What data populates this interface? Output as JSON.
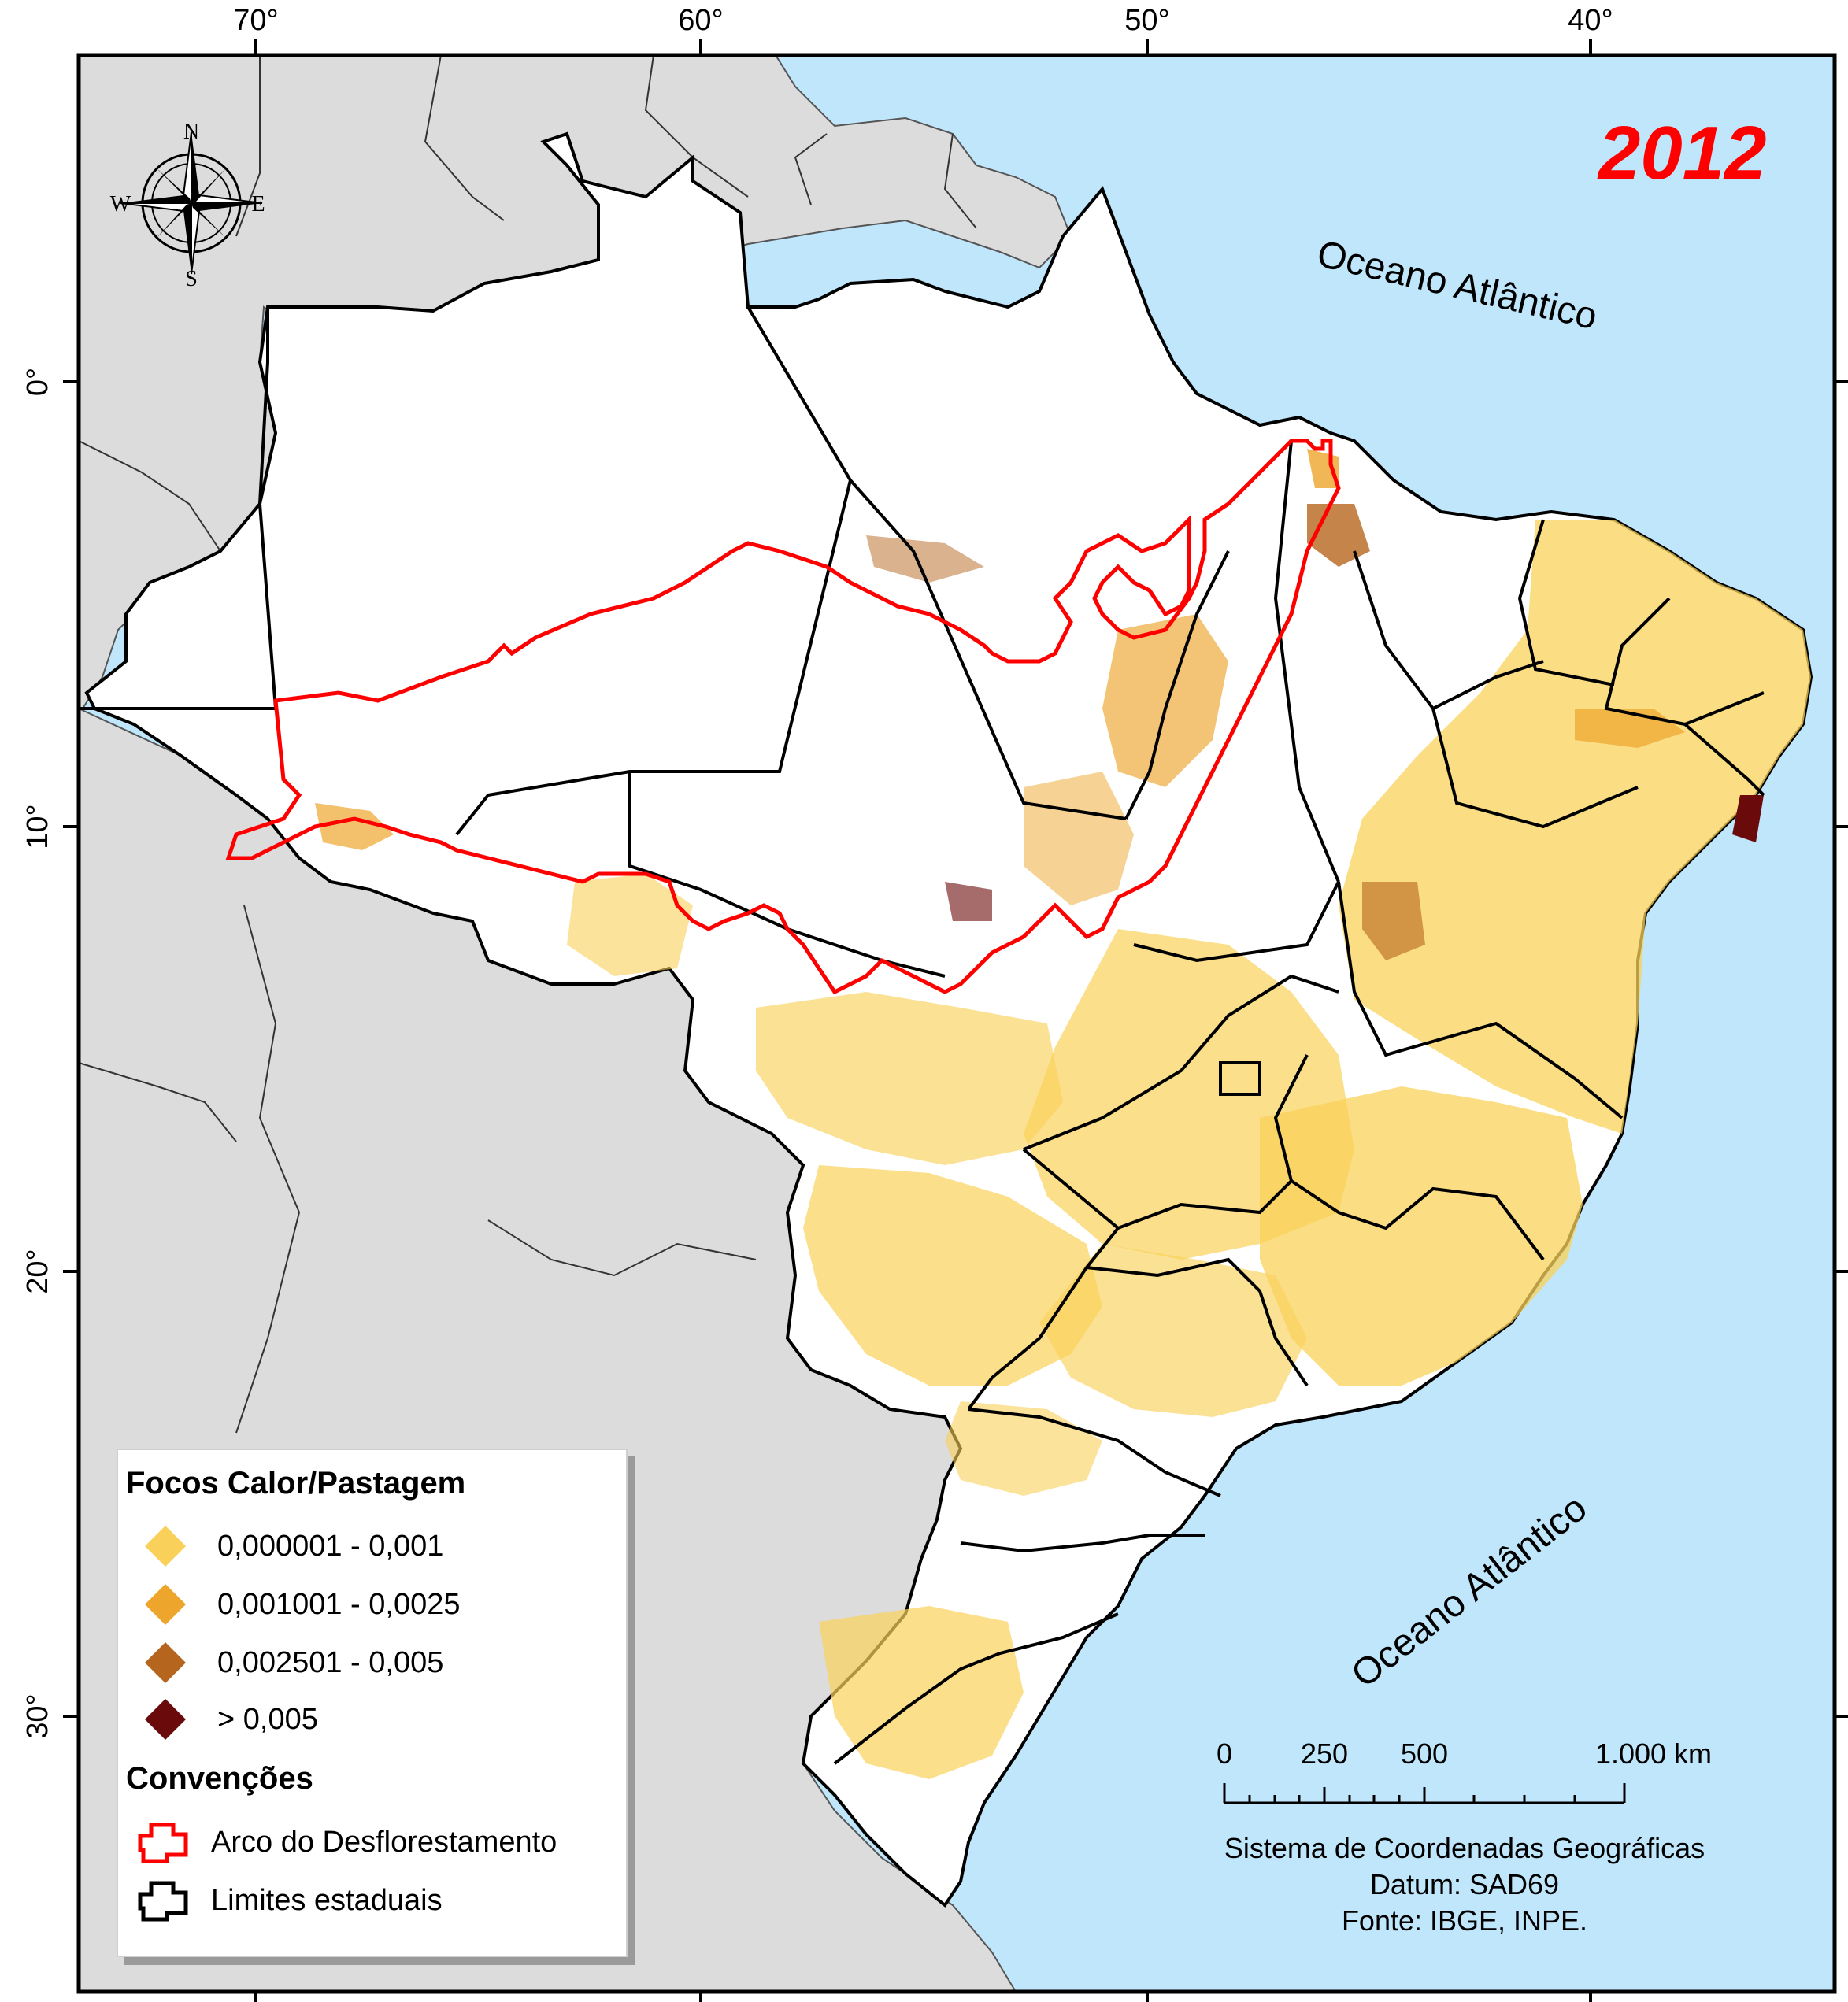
{
  "map": {
    "year": "2012",
    "ocean_labels": [
      "Oceano Atlântico",
      "Oceano Atlântico"
    ],
    "lon_ticks": [
      "70°",
      "60°",
      "50°",
      "40°"
    ],
    "lat_ticks": [
      "0°",
      "10°",
      "20°",
      "30°"
    ],
    "compass": {
      "north": "N",
      "south": "S",
      "east": "E",
      "west": "W"
    },
    "colors": {
      "ocean": "#bfe6fb",
      "neighbors": "#dcdcdc",
      "brazil": "#ffffff",
      "arco": "#ff0000",
      "state_limits": "#000000"
    }
  },
  "legend": {
    "title": "Focos Calor/Pastagem",
    "classes": [
      {
        "label": "0,000001 - 0,001",
        "color": "#f9d15a"
      },
      {
        "label": "0,001001 - 0,0025",
        "color": "#eea52c"
      },
      {
        "label": "0,002501 - 0,005",
        "color": "#b5651d"
      },
      {
        "label": "> 0,005",
        "color": "#6b0a0a"
      }
    ],
    "conventions_title": "Convenções",
    "conventions": [
      {
        "label": "Arco do Desflorestamento",
        "color": "#ff0000"
      },
      {
        "label": "Limites estaduais",
        "color": "#000000"
      }
    ]
  },
  "scale_bar": {
    "labels": [
      "0",
      "250",
      "500",
      "1.000 km"
    ]
  },
  "credits": {
    "line1": "Sistema de Coordenadas Geográficas",
    "line2": "Datum: SAD69",
    "line3": "Fonte: IBGE, INPE."
  }
}
